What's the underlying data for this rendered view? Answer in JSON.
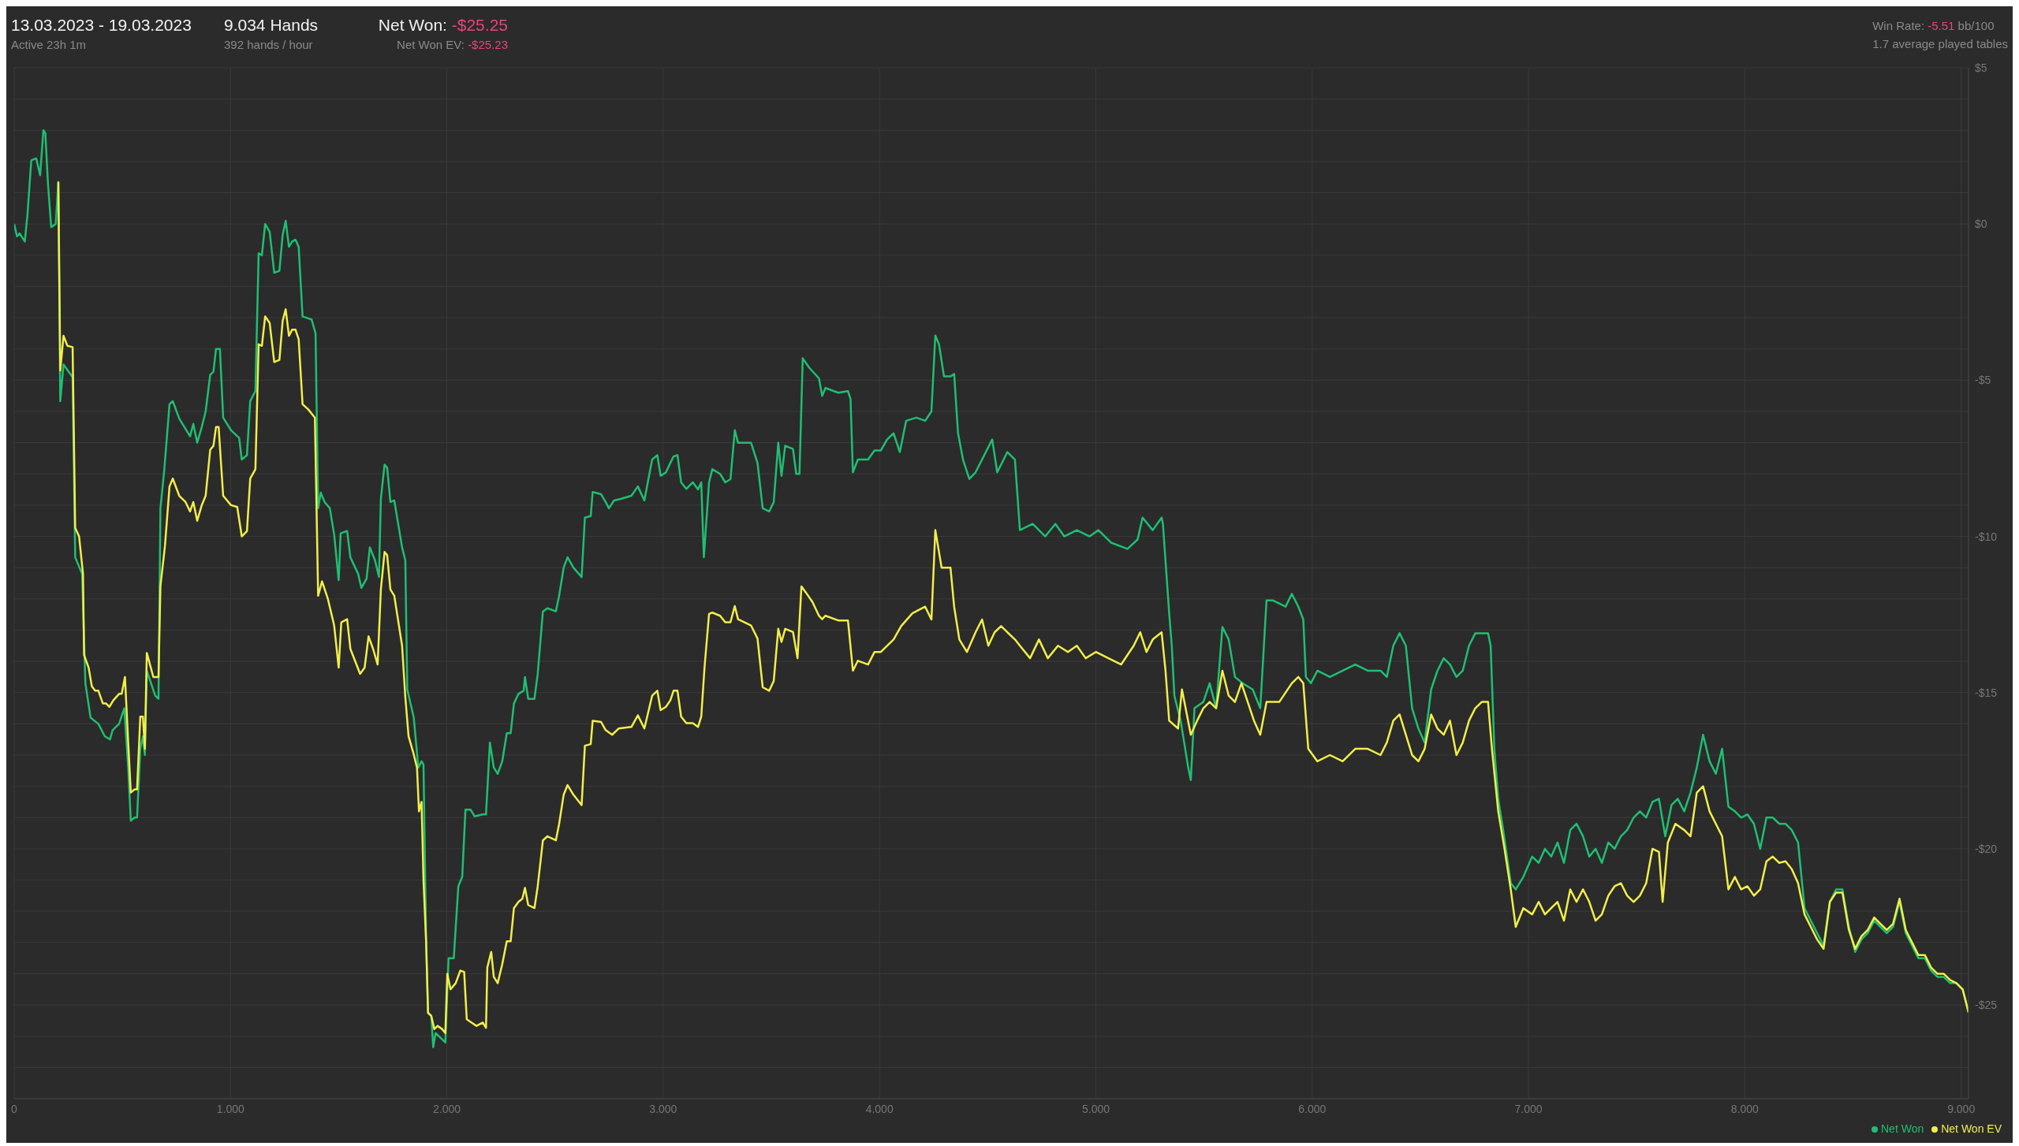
{
  "chart_data": {
    "type": "line",
    "title": "13.03.2023 - 19.03.2023",
    "subtitle": "Active 23h 1m",
    "annotations": [
      "9.034 Hands",
      "392 hands / hour",
      "Net Won: -$25.25",
      "Net Won  EV: -$25.23",
      "Win Rate: -5.51 bb/100",
      "1.7 average played tables"
    ],
    "xlim": [
      0,
      9.034
    ],
    "xticks": [
      0,
      {
        "value": 1,
        "label": "1.000"
      },
      {
        "value": 2,
        "label": "2.000"
      },
      {
        "value": 3,
        "label": "3.000"
      },
      {
        "value": 4,
        "label": "4.000"
      },
      {
        "value": 5,
        "label": "5.000"
      },
      {
        "value": 6,
        "label": "6.000"
      },
      {
        "value": 7,
        "label": "7.000"
      },
      {
        "value": 8,
        "label": "8.000"
      },
      {
        "value": 9,
        "label": "9.000"
      }
    ],
    "ylim": [
      -28,
      5
    ],
    "yticks": [
      {
        "value": 5,
        "label": "$5"
      },
      {
        "value": 4,
        "label": null
      },
      {
        "value": 3,
        "label": null
      },
      {
        "value": 2,
        "label": null
      },
      {
        "value": 1,
        "label": null
      },
      {
        "value": 0,
        "label": "$0"
      },
      {
        "value": -1,
        "label": null
      },
      {
        "value": -2,
        "label": null
      },
      {
        "value": -3,
        "label": null
      },
      {
        "value": -4,
        "label": null
      },
      {
        "value": -5,
        "label": "-$5"
      },
      {
        "value": -6,
        "label": null
      },
      {
        "value": -7,
        "label": null
      },
      {
        "value": -8,
        "label": null
      },
      {
        "value": -9,
        "label": null
      },
      {
        "value": -10,
        "label": "-$10"
      },
      {
        "value": -11,
        "label": null
      },
      {
        "value": -12,
        "label": null
      },
      {
        "value": -13,
        "label": null
      },
      {
        "value": -14,
        "label": null
      },
      {
        "value": -15,
        "label": "-$15"
      },
      {
        "value": -16,
        "label": null
      },
      {
        "value": -17,
        "label": null
      },
      {
        "value": -18,
        "label": null
      },
      {
        "value": -19,
        "label": null
      },
      {
        "value": -20,
        "label": "-$20"
      },
      {
        "value": -21,
        "label": null
      },
      {
        "value": -22,
        "label": null
      },
      {
        "value": -23,
        "label": null
      },
      {
        "value": -24,
        "label": null
      },
      {
        "value": -25,
        "label": "-$25"
      },
      {
        "value": -26,
        "label": null
      },
      {
        "value": -27,
        "label": null
      },
      {
        "value": -28,
        "label": null
      }
    ],
    "grid": true,
    "legend": "bottom right",
    "series": [
      {
        "name": "Net Won",
        "color": "#1fbf72",
        "x": [
          0,
          0.013,
          0.025,
          0.049,
          0.061,
          0.079,
          0.102,
          0.12,
          0.135,
          0.144,
          0.156,
          0.171,
          0.192,
          0.204,
          0.213,
          0.228,
          0.27,
          0.282,
          0.314,
          0.329,
          0.353,
          0.389,
          0.419,
          0.443,
          0.455,
          0.485,
          0.509,
          0.527,
          0.539,
          0.556,
          0.568,
          0.583,
          0.595,
          0.604,
          0.613,
          0.652,
          0.667,
          0.676,
          0.694,
          0.718,
          0.733,
          0.763,
          0.792,
          0.813,
          0.828,
          0.846,
          0.867,
          0.885,
          0.906,
          0.921,
          0.933,
          0.951,
          0.966,
          1.002,
          1.04,
          1.052,
          1.076,
          1.091,
          1.115,
          1.13,
          1.145,
          1.16,
          1.181,
          1.202,
          1.226,
          1.241,
          1.255,
          1.27,
          1.285,
          1.3,
          1.315,
          1.333,
          1.351,
          1.375,
          1.393,
          1.405,
          1.417,
          1.435,
          1.459,
          1.479,
          1.5,
          1.509,
          1.539,
          1.554,
          1.59,
          1.605,
          1.629,
          1.644,
          1.668,
          1.686,
          1.695,
          1.712,
          1.724,
          1.739,
          1.757,
          1.793,
          1.808,
          1.817,
          1.847,
          1.868,
          1.883,
          1.892,
          1.904,
          1.913,
          1.928,
          1.937,
          1.948,
          1.978,
          1.993,
          2.008,
          2.032,
          2.053,
          2.071,
          2.086,
          2.11,
          2.128,
          2.166,
          2.181,
          2.199,
          2.217,
          2.235,
          2.256,
          2.277,
          2.295,
          2.31,
          2.331,
          2.355,
          2.361,
          2.376,
          2.405,
          2.42,
          2.444,
          2.465,
          2.504,
          2.519,
          2.54,
          2.558,
          2.585,
          2.623,
          2.638,
          2.665,
          2.674,
          2.713,
          2.734,
          2.749,
          2.773,
          2.803,
          2.853,
          2.883,
          2.913,
          2.949,
          2.973,
          2.988,
          3.012,
          3.033,
          3.048,
          3.066,
          3.083,
          3.107,
          3.137,
          3.161,
          3.176,
          3.188,
          3.212,
          3.227,
          3.263,
          3.287,
          3.311,
          3.331,
          3.346,
          3.376,
          3.406,
          3.436,
          3.46,
          3.49,
          3.511,
          3.532,
          3.547,
          3.564,
          3.6,
          3.615,
          3.63,
          3.645,
          3.675,
          3.72,
          3.735,
          3.75,
          3.809,
          3.854,
          3.866,
          3.877,
          3.9,
          3.947,
          3.977,
          4.006,
          4.035,
          4.065,
          4.094,
          4.123,
          4.17,
          4.211,
          4.24,
          4.258,
          4.275,
          4.298,
          4.328,
          4.345,
          4.363,
          4.386,
          4.415,
          4.444,
          4.474,
          4.521,
          4.544,
          4.591,
          4.626,
          4.649,
          4.708,
          4.766,
          4.813,
          4.854,
          4.912,
          4.971,
          5.012,
          5.07,
          5.146,
          5.193,
          5.216,
          5.263,
          5.304,
          5.31,
          5.339,
          5.351,
          5.363,
          5.392,
          5.427,
          5.439,
          5.456,
          5.497,
          5.526,
          5.556,
          5.585,
          5.614,
          5.643,
          5.678,
          5.725,
          5.76,
          5.789,
          5.819,
          5.877,
          5.906,
          5.936,
          5.959,
          5.971,
          5.994,
          6.024,
          6.082,
          6.141,
          6.199,
          6.257,
          6.316,
          6.345,
          6.375,
          6.404,
          6.433,
          6.462,
          6.491,
          6.52,
          6.55,
          6.579,
          6.608,
          6.637,
          6.667,
          6.696,
          6.725,
          6.754,
          6.784,
          6.813,
          6.825,
          6.842,
          6.86,
          6.883,
          6.918,
          6.941,
          6.976,
          7.017,
          7.047,
          7.076,
          7.105,
          7.134,
          7.164,
          7.193,
          7.222,
          7.252,
          7.281,
          7.31,
          7.339,
          7.369,
          7.398,
          7.427,
          7.456,
          7.486,
          7.515,
          7.544,
          7.573,
          7.603,
          7.632,
          7.661,
          7.69,
          7.72,
          7.749,
          7.778,
          7.807,
          7.837,
          7.866,
          7.895,
          7.924,
          7.954,
          7.983,
          8.012,
          8.042,
          8.071,
          8.1,
          8.129,
          8.159,
          8.188,
          8.217,
          8.246,
          8.276,
          8.305,
          8.334,
          8.364,
          8.393,
          8.422,
          8.451,
          8.481,
          8.51,
          8.539,
          8.568,
          8.598,
          8.627,
          8.656,
          8.685,
          8.715,
          8.744,
          8.773,
          8.802,
          8.832,
          8.861,
          8.89,
          8.919,
          8.949,
          8.978,
          9.007,
          9.034
        ],
        "values": [
          0,
          -0.4,
          -0.3,
          -0.56,
          0.27,
          2.04,
          2.1,
          1.56,
          3,
          2.9,
          1.3,
          -0.1,
          0,
          1.35,
          -5.67,
          -4.5,
          -4.9,
          -10.67,
          -11.2,
          -14.7,
          -15.8,
          -16,
          -16.4,
          -16.5,
          -16.2,
          -16,
          -15.5,
          -17.4,
          -19.1,
          -19,
          -19,
          -16.8,
          -16.4,
          -17,
          -14.3,
          -15.1,
          -15.2,
          -9.1,
          -7.85,
          -5.77,
          -5.67,
          -6.23,
          -6.56,
          -6.8,
          -6.4,
          -7,
          -6.5,
          -6,
          -4.83,
          -4.73,
          -4,
          -4,
          -6.2,
          -6.6,
          -6.85,
          -7.54,
          -7.4,
          -5.67,
          -5.35,
          -0.94,
          -1,
          0,
          -0.25,
          -1.56,
          -1.5,
          -0.35,
          0.1,
          -0.73,
          -0.56,
          -0.5,
          -0.73,
          -2.96,
          -3,
          -3.06,
          -3.5,
          -9.1,
          -8.6,
          -8.9,
          -9.1,
          -9.94,
          -11.4,
          -9.9,
          -9.83,
          -10.67,
          -11.2,
          -11.65,
          -11.35,
          -10.35,
          -10.77,
          -11.3,
          -8.8,
          -7.7,
          -7.8,
          -8.9,
          -8.85,
          -10.35,
          -10.77,
          -14.9,
          -15.8,
          -17.4,
          -17.2,
          -17.3,
          -22.85,
          -25.25,
          -25.35,
          -26.35,
          -25.9,
          -26.1,
          -26.2,
          -23.5,
          -23.5,
          -21.2,
          -20.9,
          -18.75,
          -18.75,
          -18.96,
          -18.9,
          -18.9,
          -16.6,
          -17.4,
          -17.6,
          -17.2,
          -16.3,
          -16.3,
          -15.35,
          -15.04,
          -14.94,
          -14.5,
          -15.2,
          -15.2,
          -14.4,
          -12.4,
          -12.3,
          -12.4,
          -11.9,
          -11,
          -10.67,
          -11,
          -11.3,
          -9.4,
          -9.35,
          -8.58,
          -8.65,
          -8.9,
          -9.1,
          -8.85,
          -8.8,
          -8.7,
          -8.4,
          -8.85,
          -7.54,
          -7.4,
          -8.06,
          -7.96,
          -7.65,
          -7.44,
          -7.4,
          -8.27,
          -8.48,
          -8.27,
          -8.5,
          -8.27,
          -10.67,
          -8.27,
          -7.85,
          -8,
          -8.27,
          -8.17,
          -6.6,
          -7,
          -7,
          -7,
          -7.65,
          -9.1,
          -9.2,
          -8.9,
          -7,
          -8.06,
          -7.1,
          -7.2,
          -8,
          -8,
          -4.3,
          -4.6,
          -4.94,
          -5.5,
          -5.25,
          -5.4,
          -5.35,
          -5.6,
          -7.95,
          -7.54,
          -7.54,
          -7.25,
          -7.25,
          -6.9,
          -6.7,
          -7.3,
          -6.3,
          -6.2,
          -6.3,
          -6,
          -3.57,
          -3.85,
          -4.88,
          -4.88,
          -4.8,
          -6.7,
          -7.54,
          -8.16,
          -7.95,
          -7.54,
          -6.9,
          -7.95,
          -7.3,
          -7.54,
          -9.8,
          -9.6,
          -10,
          -9.6,
          -10,
          -9.8,
          -10,
          -9.8,
          -10.2,
          -10.4,
          -10.1,
          -9.4,
          -9.8,
          -9.4,
          -9.6,
          -12.46,
          -13.5,
          -15.1,
          -15.9,
          -17.4,
          -17.8,
          -15.5,
          -15.3,
          -14.7,
          -15.5,
          -12.9,
          -13.3,
          -14.5,
          -14.7,
          -14.9,
          -15.5,
          -12.05,
          -12.05,
          -12.25,
          -11.84,
          -12.25,
          -12.66,
          -14.5,
          -14.7,
          -14.3,
          -14.5,
          -14.3,
          -14.1,
          -14.3,
          -14.3,
          -14.5,
          -13.5,
          -13.1,
          -13.5,
          -15.5,
          -16.15,
          -16.6,
          -14.9,
          -14.3,
          -13.9,
          -14.1,
          -14.5,
          -14.3,
          -13.5,
          -13.1,
          -13.1,
          -13.1,
          -13.5,
          -16.8,
          -18.4,
          -19.4,
          -21.1,
          -21.3,
          -20.9,
          -20.25,
          -20.45,
          -20,
          -20.25,
          -19.8,
          -20.45,
          -19.4,
          -19.2,
          -19.6,
          -20.25,
          -20,
          -20.45,
          -19.8,
          -20,
          -19.6,
          -19.4,
          -19,
          -18.8,
          -19,
          -18.5,
          -18.4,
          -19.6,
          -18.6,
          -18.4,
          -18.8,
          -18.2,
          -17.4,
          -16.35,
          -17.2,
          -17.6,
          -16.8,
          -18.65,
          -18.8,
          -19,
          -18.9,
          -19.2,
          -20,
          -19,
          -19,
          -19.2,
          -19.2,
          -19.4,
          -19.8,
          -21.9,
          -22.3,
          -22.7,
          -23.1,
          -21.7,
          -21.3,
          -21.3,
          -22.5,
          -23.3,
          -22.9,
          -22.7,
          -22.3,
          -22.5,
          -22.7,
          -22.5,
          -21.7,
          -22.7,
          -23.1,
          -23.5,
          -23.5,
          -23.9,
          -24.1,
          -24.1,
          -24.3,
          -24.3,
          -24.5,
          -25.25
        ]
      },
      {
        "name": "Net Won  EV",
        "color": "#f2ee4a",
        "x": [
          0.204,
          0.213,
          0.228,
          0.246,
          0.27,
          0.282,
          0.3,
          0.318,
          0.323,
          0.344,
          0.359,
          0.374,
          0.389,
          0.41,
          0.425,
          0.44,
          0.458,
          0.485,
          0.497,
          0.512,
          0.527,
          0.539,
          0.556,
          0.568,
          0.583,
          0.595,
          0.604,
          0.613,
          0.643,
          0.667,
          0.676,
          0.697,
          0.718,
          0.733,
          0.763,
          0.792,
          0.813,
          0.828,
          0.846,
          0.867,
          0.885,
          0.906,
          0.921,
          0.933,
          0.945,
          0.966,
          1.002,
          1.031,
          1.052,
          1.076,
          1.091,
          1.115,
          1.13,
          1.145,
          1.16,
          1.181,
          1.202,
          1.226,
          1.241,
          1.255,
          1.27,
          1.285,
          1.3,
          1.315,
          1.333,
          1.36,
          1.39,
          1.405,
          1.423,
          1.45,
          1.479,
          1.5,
          1.512,
          1.539,
          1.554,
          1.599,
          1.62,
          1.638,
          1.659,
          1.68,
          1.695,
          1.712,
          1.724,
          1.739,
          1.757,
          1.793,
          1.808,
          1.823,
          1.844,
          1.862,
          1.871,
          1.883,
          1.892,
          1.904,
          1.913,
          1.928,
          1.942,
          1.957,
          1.978,
          1.993,
          2.002,
          2.017,
          2.041,
          2.062,
          2.08,
          2.092,
          2.113,
          2.137,
          2.166,
          2.181,
          2.187,
          2.205,
          2.217,
          2.235,
          2.256,
          2.277,
          2.295,
          2.31,
          2.331,
          2.349,
          2.361,
          2.376,
          2.405,
          2.42,
          2.444,
          2.465,
          2.504,
          2.519,
          2.54,
          2.558,
          2.585,
          2.623,
          2.638,
          2.665,
          2.674,
          2.713,
          2.734,
          2.764,
          2.794,
          2.853,
          2.883,
          2.913,
          2.949,
          2.973,
          2.988,
          3.012,
          3.033,
          3.048,
          3.066,
          3.083,
          3.107,
          3.137,
          3.161,
          3.176,
          3.191,
          3.212,
          3.227,
          3.263,
          3.287,
          3.311,
          3.331,
          3.346,
          3.376,
          3.406,
          3.436,
          3.46,
          3.49,
          3.511,
          3.532,
          3.547,
          3.564,
          3.6,
          3.621,
          3.639,
          3.66,
          3.69,
          3.72,
          3.735,
          3.75,
          3.809,
          3.854,
          3.877,
          3.9,
          3.947,
          3.977,
          4.006,
          4.065,
          4.1,
          4.152,
          4.211,
          4.24,
          4.258,
          4.287,
          4.328,
          4.345,
          4.369,
          4.404,
          4.444,
          4.474,
          4.503,
          4.532,
          4.562,
          4.591,
          4.626,
          4.649,
          4.696,
          4.737,
          4.778,
          4.825,
          4.871,
          4.912,
          4.953,
          5,
          5.058,
          5.117,
          5.175,
          5.205,
          5.234,
          5.263,
          5.304,
          5.322,
          5.339,
          5.38,
          5.398,
          5.439,
          5.468,
          5.497,
          5.526,
          5.556,
          5.585,
          5.614,
          5.643,
          5.673,
          5.731,
          5.76,
          5.789,
          5.848,
          5.906,
          5.936,
          5.959,
          5.982,
          6.024,
          6.082,
          6.141,
          6.199,
          6.257,
          6.316,
          6.345,
          6.375,
          6.404,
          6.433,
          6.462,
          6.491,
          6.52,
          6.55,
          6.579,
          6.608,
          6.637,
          6.667,
          6.696,
          6.725,
          6.754,
          6.784,
          6.813,
          6.831,
          6.86,
          6.889,
          6.918,
          6.941,
          6.976,
          7.017,
          7.047,
          7.076,
          7.105,
          7.134,
          7.164,
          7.193,
          7.222,
          7.252,
          7.281,
          7.31,
          7.339,
          7.369,
          7.398,
          7.427,
          7.456,
          7.486,
          7.515,
          7.544,
          7.573,
          7.603,
          7.62,
          7.644,
          7.679,
          7.72,
          7.749,
          7.778,
          7.807,
          7.837,
          7.866,
          7.895,
          7.924,
          7.954,
          7.983,
          8.012,
          8.042,
          8.071,
          8.1,
          8.129,
          8.159,
          8.188,
          8.217,
          8.246,
          8.276,
          8.305,
          8.334,
          8.364,
          8.393,
          8.422,
          8.451,
          8.481,
          8.51,
          8.539,
          8.568,
          8.598,
          8.627,
          8.656,
          8.685,
          8.715,
          8.744,
          8.773,
          8.802,
          8.832,
          8.861,
          8.89,
          8.919,
          8.949,
          8.978,
          9.007,
          9.034
        ],
        "values": [
          1.35,
          -4.69,
          -3.58,
          -3.9,
          -3.94,
          -9.73,
          -10,
          -11.2,
          -13.8,
          -14.2,
          -14.8,
          -14.94,
          -14.94,
          -15.35,
          -15.35,
          -15.46,
          -15.25,
          -15.04,
          -15.04,
          -14.5,
          -16.6,
          -18.2,
          -18.1,
          -18.1,
          -15.77,
          -15.77,
          -16.8,
          -13.73,
          -14.5,
          -14.5,
          -11.6,
          -10.3,
          -8.4,
          -8.15,
          -8.7,
          -8.9,
          -9.2,
          -8.9,
          -9.5,
          -9,
          -8.7,
          -7.23,
          -7.1,
          -6.5,
          -6.5,
          -8.7,
          -9,
          -9.06,
          -10,
          -9.83,
          -8.15,
          -7.85,
          -3.85,
          -3.9,
          -2.96,
          -3.17,
          -4.42,
          -4.35,
          -3.1,
          -2.73,
          -3.58,
          -3.38,
          -3.38,
          -3.69,
          -5.77,
          -5.94,
          -6.2,
          -11.9,
          -11.44,
          -12,
          -12.85,
          -14.2,
          -12.75,
          -12.65,
          -13.6,
          -14.4,
          -14.2,
          -13.2,
          -13.6,
          -14.1,
          -11.7,
          -10.5,
          -10.6,
          -11.7,
          -11.9,
          -13.5,
          -15.15,
          -16.4,
          -16.9,
          -17.4,
          -18.8,
          -18.5,
          -21,
          -22.96,
          -25.25,
          -25.35,
          -25.77,
          -25.67,
          -25.77,
          -25.9,
          -24,
          -24.5,
          -24.3,
          -23.9,
          -23.94,
          -25.46,
          -25.56,
          -25.67,
          -25.56,
          -25.73,
          -23.8,
          -23.3,
          -24.1,
          -24.3,
          -23.7,
          -22.96,
          -22.96,
          -21.9,
          -21.7,
          -21.6,
          -21.25,
          -21.8,
          -21.9,
          -21.2,
          -19.73,
          -19.6,
          -19.73,
          -19.2,
          -18.27,
          -17.96,
          -18.27,
          -18.6,
          -16.7,
          -16.65,
          -15.9,
          -15.94,
          -16.2,
          -16.35,
          -16.15,
          -16.1,
          -15.73,
          -16.15,
          -15.1,
          -14.94,
          -15.56,
          -15.46,
          -15.25,
          -14.94,
          -14.94,
          -15.77,
          -15.98,
          -15.98,
          -16.1,
          -15.77,
          -14.2,
          -12.48,
          -12.44,
          -12.54,
          -12.75,
          -12.75,
          -12.23,
          -12.65,
          -12.75,
          -12.85,
          -13.27,
          -14.83,
          -14.94,
          -14.63,
          -12.96,
          -13.38,
          -12.96,
          -13.06,
          -13.9,
          -11.6,
          -11.8,
          -12.1,
          -12.54,
          -12.65,
          -12.54,
          -12.69,
          -12.69,
          -14.3,
          -13.98,
          -14.1,
          -13.7,
          -13.7,
          -13.3,
          -12.87,
          -12.46,
          -12.25,
          -12.66,
          -9.8,
          -11,
          -11,
          -12.25,
          -13.3,
          -13.7,
          -13.07,
          -12.66,
          -13.5,
          -13.07,
          -12.87,
          -13.07,
          -13.3,
          -13.5,
          -13.9,
          -13.3,
          -13.9,
          -13.5,
          -13.7,
          -13.5,
          -13.9,
          -13.7,
          -13.9,
          -14.1,
          -13.5,
          -13.07,
          -13.7,
          -13.3,
          -13.07,
          -14.3,
          -15.9,
          -16.15,
          -14.9,
          -16.35,
          -15.9,
          -15.5,
          -15.3,
          -15.5,
          -14.3,
          -15.1,
          -15.3,
          -14.7,
          -15.9,
          -16.35,
          -15.3,
          -15.3,
          -14.7,
          -14.5,
          -14.7,
          -16.8,
          -17.2,
          -17,
          -17.2,
          -16.8,
          -16.8,
          -17,
          -16.6,
          -15.9,
          -15.7,
          -16.35,
          -17,
          -17.2,
          -16.8,
          -15.7,
          -16.15,
          -16.35,
          -15.9,
          -17,
          -16.6,
          -15.9,
          -15.5,
          -15.3,
          -15.3,
          -16.8,
          -18.8,
          -20,
          -21.3,
          -22.5,
          -21.9,
          -22.1,
          -21.7,
          -22.1,
          -21.9,
          -21.7,
          -22.3,
          -21.3,
          -21.7,
          -21.3,
          -21.7,
          -22.3,
          -22.1,
          -21.5,
          -21.2,
          -21.1,
          -21.5,
          -21.7,
          -21.5,
          -21.1,
          -20,
          -20.1,
          -21.7,
          -19.8,
          -19.2,
          -19.4,
          -19.6,
          -18.2,
          -18,
          -18.8,
          -19.2,
          -19.6,
          -21.3,
          -20.9,
          -21.3,
          -21.2,
          -21.5,
          -21.3,
          -20.4,
          -20.25,
          -20.45,
          -20.4,
          -20.65,
          -21.1,
          -22.1,
          -22.5,
          -22.9,
          -23.2,
          -21.7,
          -21.4,
          -21.4,
          -22.6,
          -23.2,
          -22.8,
          -22.6,
          -22.2,
          -22.4,
          -22.6,
          -22.4,
          -21.6,
          -22.6,
          -23,
          -23.4,
          -23.4,
          -23.8,
          -24,
          -24,
          -24.2,
          -24.3,
          -24.5,
          -25.23
        ]
      }
    ]
  }
}
